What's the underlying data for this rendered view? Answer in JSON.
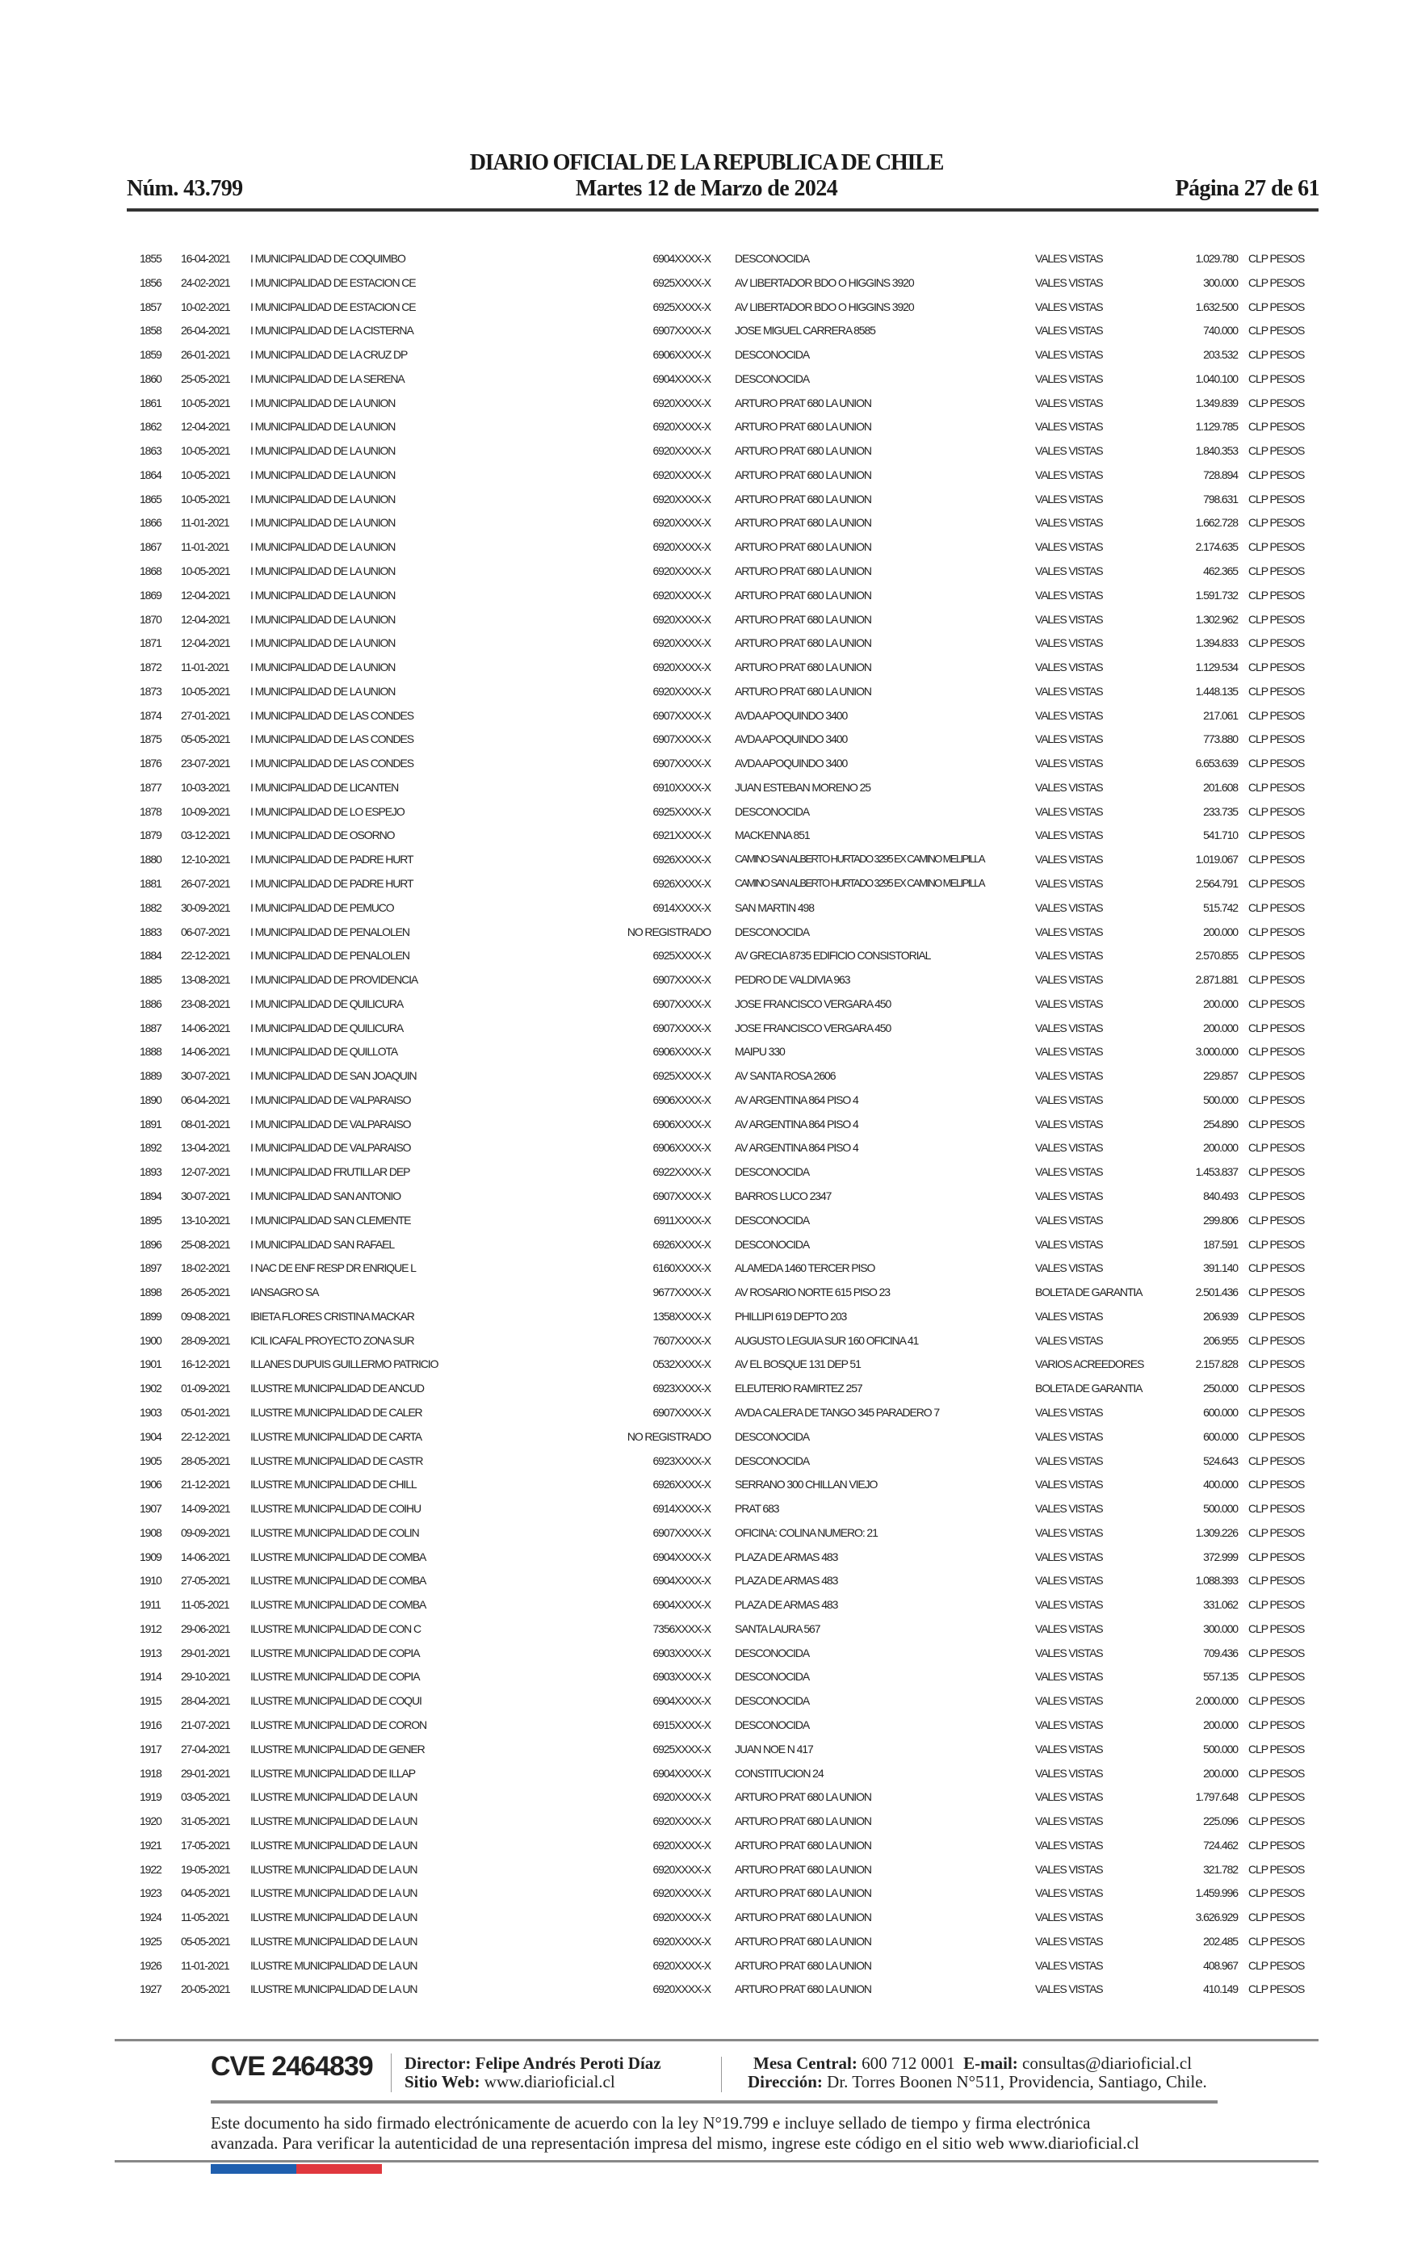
{
  "header": {
    "title": "DIARIO OFICIAL DE LA REPUBLICA DE CHILE",
    "issue_number": "Núm. 43.799",
    "date": "Martes 12 de Marzo de 2024",
    "page": "Página 27 de 61"
  },
  "rows": [
    [
      "1855",
      "16-04-2021",
      "I MUNICIPALIDAD DE COQUIMBO",
      "6904XXXX-X",
      "DESCONOCIDA",
      "VALES VISTAS",
      "1.029.780",
      "CLP PESOS"
    ],
    [
      "1856",
      "24-02-2021",
      "I MUNICIPALIDAD DE ESTACION CE",
      "6925XXXX-X",
      "AV LIBERTADOR BDO O HIGGINS 3920",
      "VALES VISTAS",
      "300.000",
      "CLP PESOS"
    ],
    [
      "1857",
      "10-02-2021",
      "I MUNICIPALIDAD DE ESTACION CE",
      "6925XXXX-X",
      "AV LIBERTADOR BDO O HIGGINS 3920",
      "VALES VISTAS",
      "1.632.500",
      "CLP PESOS"
    ],
    [
      "1858",
      "26-04-2021",
      "I MUNICIPALIDAD DE LA CISTERNA",
      "6907XXXX-X",
      "JOSE MIGUEL CARRERA 8585",
      "VALES VISTAS",
      "740.000",
      "CLP PESOS"
    ],
    [
      "1859",
      "26-01-2021",
      "I MUNICIPALIDAD DE LA CRUZ DP",
      "6906XXXX-X",
      "DESCONOCIDA",
      "VALES VISTAS",
      "203.532",
      "CLP PESOS"
    ],
    [
      "1860",
      "25-05-2021",
      "I MUNICIPALIDAD DE LA SERENA",
      "6904XXXX-X",
      "DESCONOCIDA",
      "VALES VISTAS",
      "1.040.100",
      "CLP PESOS"
    ],
    [
      "1861",
      "10-05-2021",
      "I MUNICIPALIDAD DE LA UNION",
      "6920XXXX-X",
      "ARTURO PRAT 680 LA UNION",
      "VALES VISTAS",
      "1.349.839",
      "CLP PESOS"
    ],
    [
      "1862",
      "12-04-2021",
      "I MUNICIPALIDAD DE LA UNION",
      "6920XXXX-X",
      "ARTURO PRAT 680 LA UNION",
      "VALES VISTAS",
      "1.129.785",
      "CLP PESOS"
    ],
    [
      "1863",
      "10-05-2021",
      "I MUNICIPALIDAD DE LA UNION",
      "6920XXXX-X",
      "ARTURO PRAT 680 LA UNION",
      "VALES VISTAS",
      "1.840.353",
      "CLP PESOS"
    ],
    [
      "1864",
      "10-05-2021",
      "I MUNICIPALIDAD DE LA UNION",
      "6920XXXX-X",
      "ARTURO PRAT 680 LA UNION",
      "VALES VISTAS",
      "728.894",
      "CLP PESOS"
    ],
    [
      "1865",
      "10-05-2021",
      "I MUNICIPALIDAD DE LA UNION",
      "6920XXXX-X",
      "ARTURO PRAT 680 LA UNION",
      "VALES VISTAS",
      "798.631",
      "CLP PESOS"
    ],
    [
      "1866",
      "11-01-2021",
      "I MUNICIPALIDAD DE LA UNION",
      "6920XXXX-X",
      "ARTURO PRAT 680 LA UNION",
      "VALES VISTAS",
      "1.662.728",
      "CLP PESOS"
    ],
    [
      "1867",
      "11-01-2021",
      "I MUNICIPALIDAD DE LA UNION",
      "6920XXXX-X",
      "ARTURO PRAT 680 LA UNION",
      "VALES VISTAS",
      "2.174.635",
      "CLP PESOS"
    ],
    [
      "1868",
      "10-05-2021",
      "I MUNICIPALIDAD DE LA UNION",
      "6920XXXX-X",
      "ARTURO PRAT 680 LA UNION",
      "VALES VISTAS",
      "462.365",
      "CLP PESOS"
    ],
    [
      "1869",
      "12-04-2021",
      "I MUNICIPALIDAD DE LA UNION",
      "6920XXXX-X",
      "ARTURO PRAT 680 LA UNION",
      "VALES VISTAS",
      "1.591.732",
      "CLP PESOS"
    ],
    [
      "1870",
      "12-04-2021",
      "I MUNICIPALIDAD DE LA UNION",
      "6920XXXX-X",
      "ARTURO PRAT 680 LA UNION",
      "VALES VISTAS",
      "1.302.962",
      "CLP PESOS"
    ],
    [
      "1871",
      "12-04-2021",
      "I MUNICIPALIDAD DE LA UNION",
      "6920XXXX-X",
      "ARTURO PRAT 680 LA UNION",
      "VALES VISTAS",
      "1.394.833",
      "CLP PESOS"
    ],
    [
      "1872",
      "11-01-2021",
      "I MUNICIPALIDAD DE LA UNION",
      "6920XXXX-X",
      "ARTURO PRAT 680 LA UNION",
      "VALES VISTAS",
      "1.129.534",
      "CLP PESOS"
    ],
    [
      "1873",
      "10-05-2021",
      "I MUNICIPALIDAD DE LA UNION",
      "6920XXXX-X",
      "ARTURO PRAT 680 LA UNION",
      "VALES VISTAS",
      "1.448.135",
      "CLP PESOS"
    ],
    [
      "1874",
      "27-01-2021",
      "I MUNICIPALIDAD DE LAS CONDES",
      "6907XXXX-X",
      "AVDA APOQUINDO 3400",
      "VALES VISTAS",
      "217.061",
      "CLP PESOS"
    ],
    [
      "1875",
      "05-05-2021",
      "I MUNICIPALIDAD DE LAS CONDES",
      "6907XXXX-X",
      "AVDA APOQUINDO 3400",
      "VALES VISTAS",
      "773.880",
      "CLP PESOS"
    ],
    [
      "1876",
      "23-07-2021",
      "I MUNICIPALIDAD DE LAS CONDES",
      "6907XXXX-X",
      "AVDA APOQUINDO 3400",
      "VALES VISTAS",
      "6.653.639",
      "CLP PESOS"
    ],
    [
      "1877",
      "10-03-2021",
      "I MUNICIPALIDAD DE LICANTEN",
      "6910XXXX-X",
      "JUAN ESTEBAN MORENO 25",
      "VALES VISTAS",
      "201.608",
      "CLP PESOS"
    ],
    [
      "1878",
      "10-09-2021",
      "I MUNICIPALIDAD DE LO ESPEJO",
      "6925XXXX-X",
      "DESCONOCIDA",
      "VALES VISTAS",
      "233.735",
      "CLP PESOS"
    ],
    [
      "1879",
      "03-12-2021",
      "I MUNICIPALIDAD DE OSORNO",
      "6921XXXX-X",
      "MACKENNA 851",
      "VALES VISTAS",
      "541.710",
      "CLP PESOS"
    ],
    [
      "1880",
      "12-10-2021",
      "I MUNICIPALIDAD DE PADRE HURT",
      "6926XXXX-X",
      "CAMINO SAN ALBERTO HURTADO 3295 EX CAMINO MELIPILLA",
      "VALES VISTAS",
      "1.019.067",
      "CLP PESOS"
    ],
    [
      "1881",
      "26-07-2021",
      "I MUNICIPALIDAD DE PADRE HURT",
      "6926XXXX-X",
      "CAMINO SAN ALBERTO HURTADO 3295 EX CAMINO MELIPILLA",
      "VALES VISTAS",
      "2.564.791",
      "CLP PESOS"
    ],
    [
      "1882",
      "30-09-2021",
      "I MUNICIPALIDAD DE PEMUCO",
      "6914XXXX-X",
      "SAN MARTIN 498",
      "VALES VISTAS",
      "515.742",
      "CLP PESOS"
    ],
    [
      "1883",
      "06-07-2021",
      "I MUNICIPALIDAD DE PENALOLEN",
      "NO REGISTRADO",
      "DESCONOCIDA",
      "VALES VISTAS",
      "200.000",
      "CLP PESOS"
    ],
    [
      "1884",
      "22-12-2021",
      "I MUNICIPALIDAD DE PENALOLEN",
      "6925XXXX-X",
      "AV GRECIA 8735 EDIFICIO CONSISTORIAL",
      "VALES VISTAS",
      "2.570.855",
      "CLP PESOS"
    ],
    [
      "1885",
      "13-08-2021",
      "I MUNICIPALIDAD DE PROVIDENCIA",
      "6907XXXX-X",
      "PEDRO DE VALDIVIA 963",
      "VALES VISTAS",
      "2.871.881",
      "CLP PESOS"
    ],
    [
      "1886",
      "23-08-2021",
      "I MUNICIPALIDAD DE QUILICURA",
      "6907XXXX-X",
      "JOSE FRANCISCO VERGARA 450",
      "VALES VISTAS",
      "200.000",
      "CLP PESOS"
    ],
    [
      "1887",
      "14-06-2021",
      "I MUNICIPALIDAD DE QUILICURA",
      "6907XXXX-X",
      "JOSE FRANCISCO VERGARA 450",
      "VALES VISTAS",
      "200.000",
      "CLP PESOS"
    ],
    [
      "1888",
      "14-06-2021",
      "I MUNICIPALIDAD DE QUILLOTA",
      "6906XXXX-X",
      "MAIPU 330",
      "VALES VISTAS",
      "3.000.000",
      "CLP PESOS"
    ],
    [
      "1889",
      "30-07-2021",
      "I MUNICIPALIDAD DE SAN JOAQUIN",
      "6925XXXX-X",
      "AV SANTA ROSA 2606",
      "VALES VISTAS",
      "229.857",
      "CLP PESOS"
    ],
    [
      "1890",
      "06-04-2021",
      "I MUNICIPALIDAD DE VALPARAISO",
      "6906XXXX-X",
      "AV ARGENTINA 864 PISO 4",
      "VALES VISTAS",
      "500.000",
      "CLP PESOS"
    ],
    [
      "1891",
      "08-01-2021",
      "I MUNICIPALIDAD DE VALPARAISO",
      "6906XXXX-X",
      "AV ARGENTINA 864 PISO 4",
      "VALES VISTAS",
      "254.890",
      "CLP PESOS"
    ],
    [
      "1892",
      "13-04-2021",
      "I MUNICIPALIDAD DE VALPARAISO",
      "6906XXXX-X",
      "AV ARGENTINA 864 PISO 4",
      "VALES VISTAS",
      "200.000",
      "CLP PESOS"
    ],
    [
      "1893",
      "12-07-2021",
      "I MUNICIPALIDAD FRUTILLAR DEP",
      "6922XXXX-X",
      "DESCONOCIDA",
      "VALES VISTAS",
      "1.453.837",
      "CLP PESOS"
    ],
    [
      "1894",
      "30-07-2021",
      "I MUNICIPALIDAD SAN ANTONIO",
      "6907XXXX-X",
      "BARROS LUCO 2347",
      "VALES VISTAS",
      "840.493",
      "CLP PESOS"
    ],
    [
      "1895",
      "13-10-2021",
      "I MUNICIPALIDAD SAN CLEMENTE",
      "6911XXXX-X",
      "DESCONOCIDA",
      "VALES VISTAS",
      "299.806",
      "CLP PESOS"
    ],
    [
      "1896",
      "25-08-2021",
      "I MUNICIPALIDAD SAN RAFAEL",
      "6926XXXX-X",
      "DESCONOCIDA",
      "VALES VISTAS",
      "187.591",
      "CLP PESOS"
    ],
    [
      "1897",
      "18-02-2021",
      "I NAC DE ENF RESP DR ENRIQUE L",
      "6160XXXX-X",
      "ALAMEDA 1460 TERCER PISO",
      "VALES VISTAS",
      "391.140",
      "CLP PESOS"
    ],
    [
      "1898",
      "26-05-2021",
      "IANSAGRO SA",
      "9677XXXX-X",
      "AV ROSARIO NORTE 615 PISO 23",
      "BOLETA DE GARANTIA",
      "2.501.436",
      "CLP PESOS"
    ],
    [
      "1899",
      "09-08-2021",
      "IBIETA FLORES CRISTINA MACKAR",
      "1358XXXX-X",
      "PHILLIPI 619 DEPTO 203",
      "VALES VISTAS",
      "206.939",
      "CLP PESOS"
    ],
    [
      "1900",
      "28-09-2021",
      "ICIL ICAFAL PROYECTO ZONA SUR",
      "7607XXXX-X",
      "AUGUSTO LEGUIA SUR 160 OFICINA 41",
      "VALES VISTAS",
      "206.955",
      "CLP PESOS"
    ],
    [
      "1901",
      "16-12-2021",
      "ILLANES DUPUIS GUILLERMO PATRICIO",
      "0532XXXX-X",
      "AV EL BOSQUE 131 DEP 51",
      "VARIOS ACREEDORES",
      "2.157.828",
      "CLP PESOS"
    ],
    [
      "1902",
      "01-09-2021",
      "ILUSTRE MUNICIPALIDAD DE ANCUD",
      "6923XXXX-X",
      "ELEUTERIO RAMIRTEZ 257",
      "BOLETA DE GARANTIA",
      "250.000",
      "CLP PESOS"
    ],
    [
      "1903",
      "05-01-2021",
      "ILUSTRE MUNICIPALIDAD DE CALER",
      "6907XXXX-X",
      "AVDA CALERA DE TANGO 345 PARADERO 7",
      "VALES VISTAS",
      "600.000",
      "CLP PESOS"
    ],
    [
      "1904",
      "22-12-2021",
      "ILUSTRE MUNICIPALIDAD DE CARTA",
      "NO REGISTRADO",
      "DESCONOCIDA",
      "VALES VISTAS",
      "600.000",
      "CLP PESOS"
    ],
    [
      "1905",
      "28-05-2021",
      "ILUSTRE MUNICIPALIDAD DE CASTR",
      "6923XXXX-X",
      "DESCONOCIDA",
      "VALES VISTAS",
      "524.643",
      "CLP PESOS"
    ],
    [
      "1906",
      "21-12-2021",
      "ILUSTRE MUNICIPALIDAD DE CHILL",
      "6926XXXX-X",
      "SERRANO 300 CHILLAN VIEJO",
      "VALES VISTAS",
      "400.000",
      "CLP PESOS"
    ],
    [
      "1907",
      "14-09-2021",
      "ILUSTRE MUNICIPALIDAD DE COIHU",
      "6914XXXX-X",
      "PRAT 683",
      "VALES VISTAS",
      "500.000",
      "CLP PESOS"
    ],
    [
      "1908",
      "09-09-2021",
      "ILUSTRE MUNICIPALIDAD DE COLIN",
      "6907XXXX-X",
      "OFICINA: COLINA NUMERO: 21",
      "VALES VISTAS",
      "1.309.226",
      "CLP PESOS"
    ],
    [
      "1909",
      "14-06-2021",
      "ILUSTRE MUNICIPALIDAD DE COMBA",
      "6904XXXX-X",
      "PLAZA DE ARMAS 483",
      "VALES VISTAS",
      "372.999",
      "CLP PESOS"
    ],
    [
      "1910",
      "27-05-2021",
      "ILUSTRE MUNICIPALIDAD DE COMBA",
      "6904XXXX-X",
      "PLAZA DE ARMAS 483",
      "VALES VISTAS",
      "1.088.393",
      "CLP PESOS"
    ],
    [
      "1911",
      "11-05-2021",
      "ILUSTRE MUNICIPALIDAD DE COMBA",
      "6904XXXX-X",
      "PLAZA DE ARMAS 483",
      "VALES VISTAS",
      "331.062",
      "CLP PESOS"
    ],
    [
      "1912",
      "29-06-2021",
      "ILUSTRE MUNICIPALIDAD DE CON C",
      "7356XXXX-X",
      "SANTA LAURA 567",
      "VALES VISTAS",
      "300.000",
      "CLP PESOS"
    ],
    [
      "1913",
      "29-01-2021",
      "ILUSTRE MUNICIPALIDAD DE COPIA",
      "6903XXXX-X",
      "DESCONOCIDA",
      "VALES VISTAS",
      "709.436",
      "CLP PESOS"
    ],
    [
      "1914",
      "29-10-2021",
      "ILUSTRE MUNICIPALIDAD DE COPIA",
      "6903XXXX-X",
      "DESCONOCIDA",
      "VALES VISTAS",
      "557.135",
      "CLP PESOS"
    ],
    [
      "1915",
      "28-04-2021",
      "ILUSTRE MUNICIPALIDAD DE COQUI",
      "6904XXXX-X",
      "DESCONOCIDA",
      "VALES VISTAS",
      "2.000.000",
      "CLP PESOS"
    ],
    [
      "1916",
      "21-07-2021",
      "ILUSTRE MUNICIPALIDAD DE CORON",
      "6915XXXX-X",
      "DESCONOCIDA",
      "VALES VISTAS",
      "200.000",
      "CLP PESOS"
    ],
    [
      "1917",
      "27-04-2021",
      "ILUSTRE MUNICIPALIDAD DE GENER",
      "6925XXXX-X",
      "JUAN NOE N 417",
      "VALES VISTAS",
      "500.000",
      "CLP PESOS"
    ],
    [
      "1918",
      "29-01-2021",
      "ILUSTRE MUNICIPALIDAD DE ILLAP",
      "6904XXXX-X",
      "CONSTITUCION 24",
      "VALES VISTAS",
      "200.000",
      "CLP PESOS"
    ],
    [
      "1919",
      "03-05-2021",
      "ILUSTRE MUNICIPALIDAD DE LA UN",
      "6920XXXX-X",
      "ARTURO PRAT 680 LA UNION",
      "VALES VISTAS",
      "1.797.648",
      "CLP PESOS"
    ],
    [
      "1920",
      "31-05-2021",
      "ILUSTRE MUNICIPALIDAD DE LA UN",
      "6920XXXX-X",
      "ARTURO PRAT 680 LA UNION",
      "VALES VISTAS",
      "225.096",
      "CLP PESOS"
    ],
    [
      "1921",
      "17-05-2021",
      "ILUSTRE MUNICIPALIDAD DE LA UN",
      "6920XXXX-X",
      "ARTURO PRAT 680 LA UNION",
      "VALES VISTAS",
      "724.462",
      "CLP PESOS"
    ],
    [
      "1922",
      "19-05-2021",
      "ILUSTRE MUNICIPALIDAD DE LA UN",
      "6920XXXX-X",
      "ARTURO PRAT 680 LA UNION",
      "VALES VISTAS",
      "321.782",
      "CLP PESOS"
    ],
    [
      "1923",
      "04-05-2021",
      "ILUSTRE MUNICIPALIDAD DE LA UN",
      "6920XXXX-X",
      "ARTURO PRAT 680 LA UNION",
      "VALES VISTAS",
      "1.459.996",
      "CLP PESOS"
    ],
    [
      "1924",
      "11-05-2021",
      "ILUSTRE MUNICIPALIDAD DE LA UN",
      "6920XXXX-X",
      "ARTURO PRAT 680 LA UNION",
      "VALES VISTAS",
      "3.626.929",
      "CLP PESOS"
    ],
    [
      "1925",
      "05-05-2021",
      "ILUSTRE MUNICIPALIDAD DE LA UN",
      "6920XXXX-X",
      "ARTURO PRAT 680 LA UNION",
      "VALES VISTAS",
      "202.485",
      "CLP PESOS"
    ],
    [
      "1926",
      "11-01-2021",
      "ILUSTRE MUNICIPALIDAD DE LA UN",
      "6920XXXX-X",
      "ARTURO PRAT 680 LA UNION",
      "VALES VISTAS",
      "408.967",
      "CLP PESOS"
    ],
    [
      "1927",
      "20-05-2021",
      "ILUSTRE MUNICIPALIDAD DE LA UN",
      "6920XXXX-X",
      "ARTURO PRAT 680 LA UNION",
      "VALES VISTAS",
      "410.149",
      "CLP PESOS"
    ]
  ],
  "footer": {
    "cve": "CVE 2464839",
    "director_label": "Director:",
    "director_value": "Felipe Andrés Peroti Díaz",
    "web_label": "Sitio Web:",
    "web_value": "www.diarioficial.cl",
    "mesa_label": "Mesa Central:",
    "mesa_value": "600 712 0001",
    "email_label": "E-mail:",
    "email_value": "consultas@diarioficial.cl",
    "address_label": "Dirección:",
    "address_value": "Dr. Torres Boonen N°511, Providencia, Santiago, Chile.",
    "disclaimer_line1": "Este documento ha sido firmado electrónicamente de acuerdo con la ley N°19.799 e incluye sellado de tiempo y firma electrónica",
    "disclaimer_line2": "avanzada. Para verificar la autenticidad de una representación impresa del mismo, ingrese este código en el sitio web www.diarioficial.cl"
  },
  "colors": {
    "flag_blue": "#1f5fae",
    "flag_red": "#e0383e",
    "rule": "#333333"
  }
}
